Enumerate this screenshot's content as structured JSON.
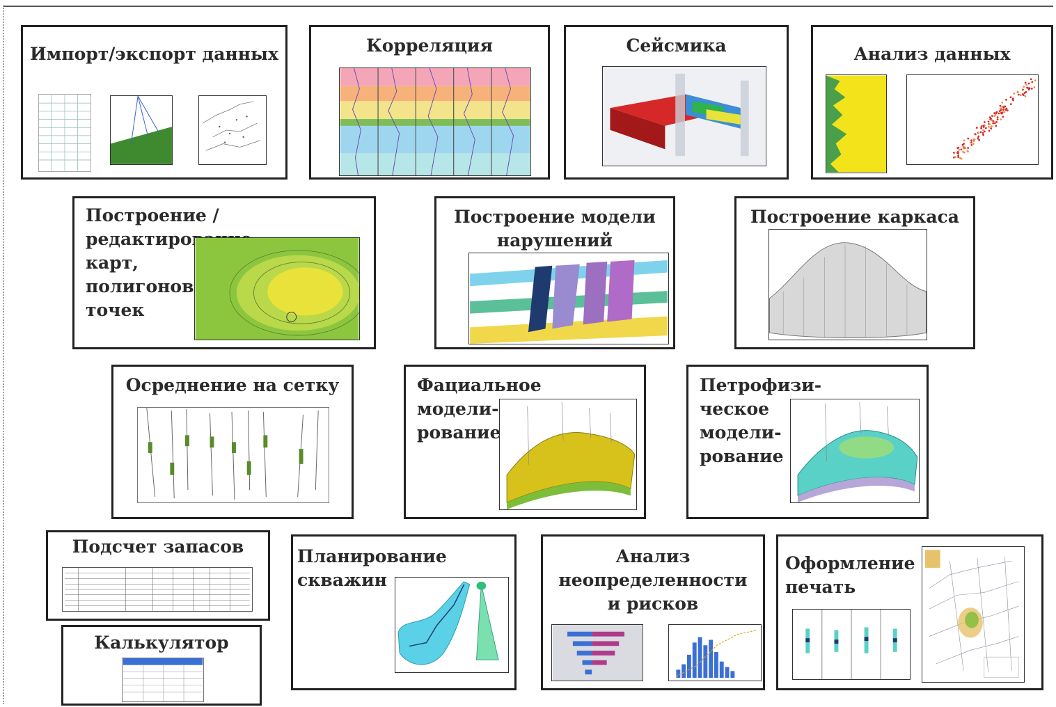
{
  "modules": {
    "import_export": "Импорт/экспорт  данных",
    "correlation": "Корреляция",
    "seismic": "Сейсмика",
    "data_analysis": "Анализ данных",
    "maps": "Построение / редактирование\nкарт,\nполигонов,\nточек",
    "faults": "Построение  модели\nнарушений",
    "framework": "Построение каркаса",
    "gridding": "Осреднение на сетку",
    "facies": "Фациальное\nмодели-\nрование",
    "petrophysics": "Петрофизи-\nческое\nмодели-\nрование",
    "reserves": "Подсчет запасов",
    "calculator": "Калькулятор",
    "well_planning": "Планирование\n  скважин",
    "uncertainty": "Анализ\nнеопределенности\nи рисков",
    "printing": "Оформление\nпечать"
  },
  "colors": {
    "border": "#222222",
    "map_green": "#8cc63f",
    "map_yellow": "#e8e23a",
    "seismic_red": "#d62828",
    "cyan": "#5ad1e6",
    "bar_magenta": "#b03a8a",
    "bar_blue": "#3a6fd6"
  }
}
